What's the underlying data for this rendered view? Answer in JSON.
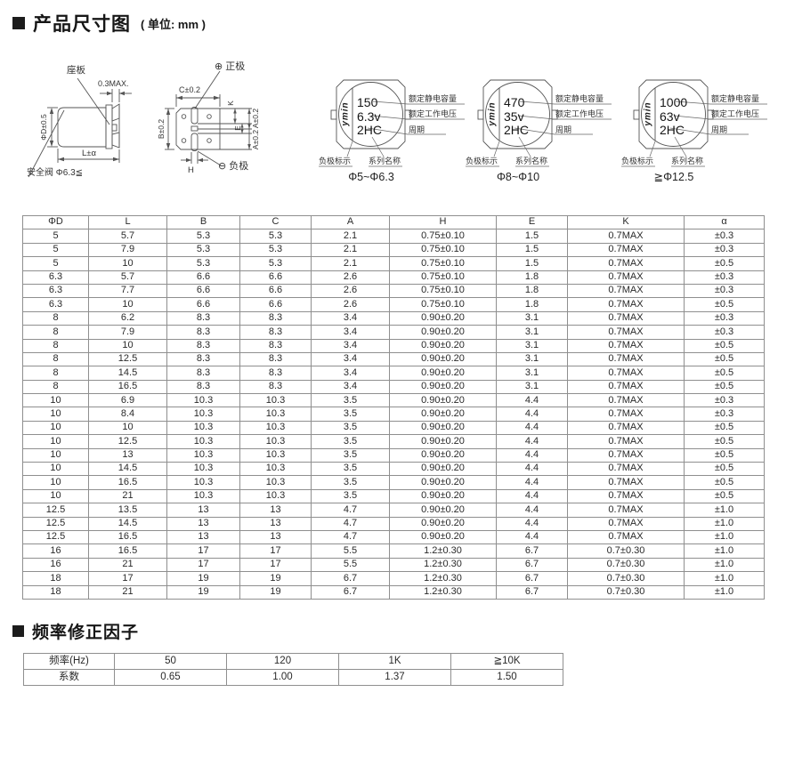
{
  "page": {
    "title": "产品尺寸图",
    "unit_note": "( 单位: mm )",
    "section2_title": "频率修正因子"
  },
  "colors": {
    "ink": "#222222",
    "table_border": "#8f8f8f",
    "diagram_line": "#555555"
  },
  "side_view": {
    "seat_label": "座板",
    "seat_thickness": "0.3MAX.",
    "diameter": "ΦD±0.5",
    "length": "L±α",
    "safety_valve": "安全阀 Φ6.3≦"
  },
  "bottom_view": {
    "positive_icon": "⊕",
    "positive": "正极",
    "negative_icon": "⊖",
    "negative": "负极",
    "width_c": "C±0.2",
    "width_b": "B±0.2",
    "dim_k": "K",
    "dim_e": "E",
    "dim_a_top": "A±0.2",
    "dim_a_bottom": "A±0.2",
    "dim_h": "H"
  },
  "marking_labels": {
    "logo": "ymin",
    "capacitance": "额定静电容量",
    "voltage": "额定工作电压",
    "period": "周期",
    "negative_mark": "负极标示",
    "series_name": "系列名称"
  },
  "chips": [
    {
      "capacitance": "150",
      "voltage": "6.3v",
      "series": "2HC",
      "range": "Φ5~Φ6.3"
    },
    {
      "capacitance": "470",
      "voltage": "35v",
      "series": "2HC",
      "range": "Φ8~Φ10"
    },
    {
      "capacitance": "1000",
      "voltage": "63v",
      "series": "2HC",
      "range": "≧Φ12.5"
    }
  ],
  "dimension_table": {
    "headers": [
      "ΦD",
      "L",
      "B",
      "C",
      "A",
      "H",
      "E",
      "K",
      "α"
    ],
    "rows": [
      [
        "5",
        "5.7",
        "5.3",
        "5.3",
        "2.1",
        "0.75±0.10",
        "1.5",
        "0.7MAX",
        "±0.3"
      ],
      [
        "5",
        "7.9",
        "5.3",
        "5.3",
        "2.1",
        "0.75±0.10",
        "1.5",
        "0.7MAX",
        "±0.3"
      ],
      [
        "5",
        "10",
        "5.3",
        "5.3",
        "2.1",
        "0.75±0.10",
        "1.5",
        "0.7MAX",
        "±0.5"
      ],
      [
        "6.3",
        "5.7",
        "6.6",
        "6.6",
        "2.6",
        "0.75±0.10",
        "1.8",
        "0.7MAX",
        "±0.3"
      ],
      [
        "6.3",
        "7.7",
        "6.6",
        "6.6",
        "2.6",
        "0.75±0.10",
        "1.8",
        "0.7MAX",
        "±0.3"
      ],
      [
        "6.3",
        "10",
        "6.6",
        "6.6",
        "2.6",
        "0.75±0.10",
        "1.8",
        "0.7MAX",
        "±0.5"
      ],
      [
        "8",
        "6.2",
        "8.3",
        "8.3",
        "3.4",
        "0.90±0.20",
        "3.1",
        "0.7MAX",
        "±0.3"
      ],
      [
        "8",
        "7.9",
        "8.3",
        "8.3",
        "3.4",
        "0.90±0.20",
        "3.1",
        "0.7MAX",
        "±0.3"
      ],
      [
        "8",
        "10",
        "8.3",
        "8.3",
        "3.4",
        "0.90±0.20",
        "3.1",
        "0.7MAX",
        "±0.5"
      ],
      [
        "8",
        "12.5",
        "8.3",
        "8.3",
        "3.4",
        "0.90±0.20",
        "3.1",
        "0.7MAX",
        "±0.5"
      ],
      [
        "8",
        "14.5",
        "8.3",
        "8.3",
        "3.4",
        "0.90±0.20",
        "3.1",
        "0.7MAX",
        "±0.5"
      ],
      [
        "8",
        "16.5",
        "8.3",
        "8.3",
        "3.4",
        "0.90±0.20",
        "3.1",
        "0.7MAX",
        "±0.5"
      ],
      [
        "10",
        "6.9",
        "10.3",
        "10.3",
        "3.5",
        "0.90±0.20",
        "4.4",
        "0.7MAX",
        "±0.3"
      ],
      [
        "10",
        "8.4",
        "10.3",
        "10.3",
        "3.5",
        "0.90±0.20",
        "4.4",
        "0.7MAX",
        "±0.3"
      ],
      [
        "10",
        "10",
        "10.3",
        "10.3",
        "3.5",
        "0.90±0.20",
        "4.4",
        "0.7MAX",
        "±0.5"
      ],
      [
        "10",
        "12.5",
        "10.3",
        "10.3",
        "3.5",
        "0.90±0.20",
        "4.4",
        "0.7MAX",
        "±0.5"
      ],
      [
        "10",
        "13",
        "10.3",
        "10.3",
        "3.5",
        "0.90±0.20",
        "4.4",
        "0.7MAX",
        "±0.5"
      ],
      [
        "10",
        "14.5",
        "10.3",
        "10.3",
        "3.5",
        "0.90±0.20",
        "4.4",
        "0.7MAX",
        "±0.5"
      ],
      [
        "10",
        "16.5",
        "10.3",
        "10.3",
        "3.5",
        "0.90±0.20",
        "4.4",
        "0.7MAX",
        "±0.5"
      ],
      [
        "10",
        "21",
        "10.3",
        "10.3",
        "3.5",
        "0.90±0.20",
        "4.4",
        "0.7MAX",
        "±0.5"
      ],
      [
        "12.5",
        "13.5",
        "13",
        "13",
        "4.7",
        "0.90±0.20",
        "4.4",
        "0.7MAX",
        "±1.0"
      ],
      [
        "12.5",
        "14.5",
        "13",
        "13",
        "4.7",
        "0.90±0.20",
        "4.4",
        "0.7MAX",
        "±1.0"
      ],
      [
        "12.5",
        "16.5",
        "13",
        "13",
        "4.7",
        "0.90±0.20",
        "4.4",
        "0.7MAX",
        "±1.0"
      ],
      [
        "16",
        "16.5",
        "17",
        "17",
        "5.5",
        "1.2±0.30",
        "6.7",
        "0.7±0.30",
        "±1.0"
      ],
      [
        "16",
        "21",
        "17",
        "17",
        "5.5",
        "1.2±0.30",
        "6.7",
        "0.7±0.30",
        "±1.0"
      ],
      [
        "18",
        "17",
        "19",
        "19",
        "6.7",
        "1.2±0.30",
        "6.7",
        "0.7±0.30",
        "±1.0"
      ],
      [
        "18",
        "21",
        "19",
        "19",
        "6.7",
        "1.2±0.30",
        "6.7",
        "0.7±0.30",
        "±1.0"
      ]
    ]
  },
  "frequency_table": {
    "rows": [
      [
        "频率(Hz)",
        "50",
        "120",
        "1K",
        "≧10K"
      ],
      [
        "系数",
        "0.65",
        "1.00",
        "1.37",
        "1.50"
      ]
    ]
  }
}
